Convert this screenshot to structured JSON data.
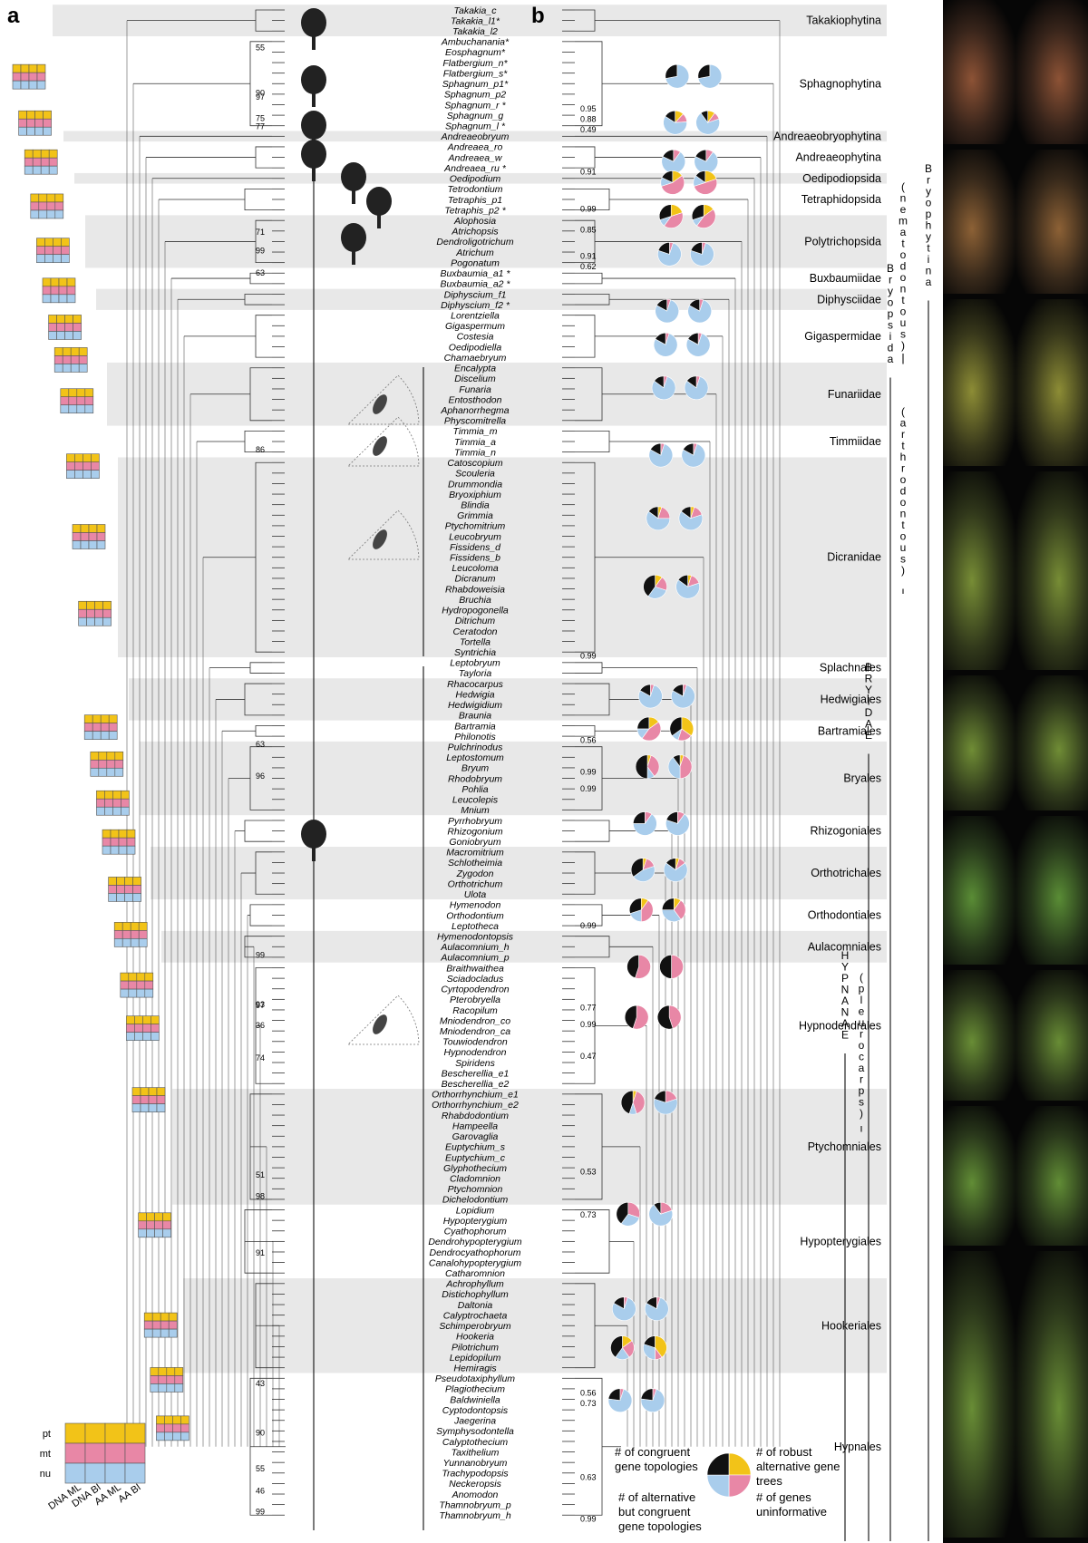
{
  "panel_labels": {
    "a": "a",
    "b": "b"
  },
  "colors": {
    "pt": "#f2c318",
    "mt": "#e887a6",
    "nu": "#a9cdec",
    "uninformative": "#111111",
    "band": "#e8e8e8"
  },
  "taxa": [
    "Takakia_c",
    "Takakia_l1*",
    "Takakia_l2",
    "Ambuchanania*",
    "Eosphagnum*",
    "Flatbergium_n*",
    "Flatbergium_s*",
    "Sphagnum_p1*",
    "Sphagnum_p2",
    "Sphagnum_r *",
    "Sphagnum_g",
    "Sphagnum_l *",
    "Andreaeobryum",
    "Andreaea_ro",
    "Andreaea_w",
    "Andreaea_ru *",
    "Oedipodium",
    "Tetrodontium",
    "Tetraphis_p1",
    "Tetraphis_p2 *",
    "Alophosia",
    "Atrichopsis",
    "Dendroligotrichum",
    "Atrichum",
    "Pogonatum",
    "Buxbaumia_a1 *",
    "Buxbaumia_a2 *",
    "Diphyscium_f1",
    "Diphyscium_f2 *",
    "Lorentziella",
    "Gigaspermum",
    "Costesia",
    "Oedipodiella",
    "Chamaebryum",
    "Encalypta",
    "Discelium",
    "Funaria",
    "Entosthodon",
    "Aphanorrhegma",
    "Physcomitrella",
    "Timmia_m",
    "Timmia_a",
    "Timmia_n",
    "Catoscopium",
    "Scouleria",
    "Drummondia",
    "Bryoxiphium",
    "Blindia",
    "Grimmia",
    "Ptychomitrium",
    "Leucobryum",
    "Fissidens_d",
    "Fissidens_b",
    "Leucoloma",
    "Dicranum",
    "Rhabdoweisia",
    "Bruchia",
    "Hydropogonella",
    "Ditrichum",
    "Ceratodon",
    "Tortella",
    "Syntrichia",
    "Leptobryum",
    "Tayloria",
    "Rhacocarpus",
    "Hedwigia",
    "Hedwigidium",
    "Braunia",
    "Bartramia",
    "Philonotis",
    "Pulchrinodus",
    "Leptostomum",
    "Bryum",
    "Rhodobryum",
    "Pohlia",
    "Leucolepis",
    "Mnium",
    "Pyrrhobryum",
    "Rhizogonium",
    "Goniobryum",
    "Macromitrium",
    "Schlotheimia",
    "Zygodon",
    "Orthotrichum",
    "Ulota",
    "Hymenodon",
    "Orthodontium",
    "Leptotheca",
    "Hymenodontopsis",
    "Aulacomnium_h",
    "Aulacomnium_p",
    "Braithwaithea",
    "Sciadocladus",
    "Cyrtopodendron",
    "Pterobryella",
    "Racopilum",
    "Mniodendron_co",
    "Mniodendron_ca",
    "Touwiodendron",
    "Hypnodendron",
    "Spiridens",
    "Bescherellia_e1",
    "Bescherellia_e2",
    "Orthorrhynchium_e1",
    "Orthorrhynchium_e2",
    "Rhabdodontium",
    "Hampeella",
    "Garovaglia",
    "Euptychium_s",
    "Euptychium_c",
    "Glyphothecium",
    "Cladomnion",
    "Ptychomnion",
    "Dichelodontium",
    "Lopidium",
    "Hypopterygium",
    "Cyathophorum",
    "Dendrohypopterygium",
    "Dendrocyathophorum",
    "Canalohypopterygium",
    "Catharomnion",
    "Achrophyllum",
    "Distichophyllum",
    "Daltonia",
    "Calyptrochaeta",
    "Schimperobryum",
    "Hookeria",
    "Pilotrichum",
    "Lepidopilum",
    "Hemiragis",
    "Pseudotaxiphyllum",
    "Plagiothecium",
    "Baldwiniella",
    "Cyptodontopsis",
    "Jaegerina",
    "Symphysodontella",
    "Calyptothecium",
    "Taxithelium",
    "Yunnanobryum",
    "Trachypodopsis",
    "Neckeropsis",
    "Anomodon",
    "Thamnobryum_p",
    "Thamnobryum_h"
  ],
  "clades": [
    {
      "label": "Takakiophytina",
      "from": 0,
      "to": 2,
      "band": true
    },
    {
      "label": "Sphagnophytina",
      "from": 3,
      "to": 11,
      "band": false
    },
    {
      "label": "Andreaeobryophytina",
      "from": 12,
      "to": 12,
      "band": true
    },
    {
      "label": "Andreaeophytina",
      "from": 13,
      "to": 15,
      "band": false
    },
    {
      "label": "Oedipodiopsida",
      "from": 16,
      "to": 16,
      "band": true
    },
    {
      "label": "Tetraphidopsida",
      "from": 17,
      "to": 19,
      "band": false
    },
    {
      "label": "Polytrichopsida",
      "from": 20,
      "to": 24,
      "band": true
    },
    {
      "label": "Buxbaumiidae",
      "from": 25,
      "to": 26,
      "band": false
    },
    {
      "label": "Diphysciidae",
      "from": 27,
      "to": 28,
      "band": true
    },
    {
      "label": "Gigaspermidae",
      "from": 29,
      "to": 33,
      "band": false
    },
    {
      "label": "Funariidae",
      "from": 34,
      "to": 39,
      "band": true
    },
    {
      "label": "Timmiidae",
      "from": 40,
      "to": 42,
      "band": false
    },
    {
      "label": "Dicranidae",
      "from": 43,
      "to": 61,
      "band": true
    },
    {
      "label": "Splachnales",
      "from": 62,
      "to": 63,
      "band": false
    },
    {
      "label": "Hedwigiales",
      "from": 64,
      "to": 67,
      "band": true
    },
    {
      "label": "Bartramiales",
      "from": 68,
      "to": 69,
      "band": false
    },
    {
      "label": "Bryales",
      "from": 70,
      "to": 76,
      "band": true
    },
    {
      "label": "Rhizogoniales",
      "from": 77,
      "to": 79,
      "band": false
    },
    {
      "label": "Orthotrichales",
      "from": 80,
      "to": 84,
      "band": true
    },
    {
      "label": "Orthodontiales",
      "from": 85,
      "to": 87,
      "band": false
    },
    {
      "label": "Aulacomniales",
      "from": 88,
      "to": 90,
      "band": true
    },
    {
      "label": "Hypnodendrales",
      "from": 91,
      "to": 102,
      "band": false
    },
    {
      "label": "Ptychomniales",
      "from": 103,
      "to": 113,
      "band": true
    },
    {
      "label": "Hypopterygiales",
      "from": 114,
      "to": 120,
      "band": false
    },
    {
      "label": "Hookeriales",
      "from": 121,
      "to": 129,
      "band": true
    },
    {
      "label": "Hypnales",
      "from": 130,
      "to": 143,
      "band": false
    }
  ],
  "vertical_labels": [
    {
      "text": "Bryophytina",
      "col": 3
    },
    {
      "text": "Bryopsida",
      "col": 2
    },
    {
      "text": "(nematodontous)",
      "col": 1
    },
    {
      "text": "(arthrodontous)",
      "col": 1
    },
    {
      "text": "BRYIDAE",
      "col": 0
    },
    {
      "text": "HYPNANAE",
      "col": -1
    },
    {
      "text": "(pleurocarps)",
      "col": 0
    }
  ],
  "support_values_a": [
    {
      "text": "55",
      "row": 3.5
    },
    {
      "text": "90",
      "row": 7.8
    },
    {
      "text": "97",
      "row": 8.2
    },
    {
      "text": "75",
      "row": 10.2
    },
    {
      "text": "77",
      "row": 11
    },
    {
      "text": "71",
      "row": 21
    },
    {
      "text": "99",
      "row": 22.8
    },
    {
      "text": "63",
      "row": 24.9
    },
    {
      "text": "86",
      "row": 41.7
    },
    {
      "text": "63",
      "row": 69.7
    },
    {
      "text": "96",
      "row": 72.7
    },
    {
      "text": "99",
      "row": 89.7
    },
    {
      "text": "97",
      "row": 94.5
    },
    {
      "text": "93",
      "row": 94.4
    },
    {
      "text": "36",
      "row": 96.4
    },
    {
      "text": "74",
      "row": 99.5
    },
    {
      "text": "51",
      "row": 110.6
    },
    {
      "text": "98",
      "row": 112.6
    },
    {
      "text": "91",
      "row": 118
    },
    {
      "text": "43",
      "row": 130.4
    },
    {
      "text": "90",
      "row": 135.1
    },
    {
      "text": "55",
      "row": 138.5
    },
    {
      "text": "46",
      "row": 140.6
    },
    {
      "text": "99",
      "row": 142.6
    }
  ],
  "support_values_b": [
    {
      "text": "0.95",
      "row": 9.3
    },
    {
      "text": "0.88",
      "row": 10.3
    },
    {
      "text": "0.49",
      "row": 11.3
    },
    {
      "text": "0.91",
      "row": 15.3
    },
    {
      "text": "0.99",
      "row": 18.8
    },
    {
      "text": "0.85",
      "row": 20.8
    },
    {
      "text": "0.91",
      "row": 23.3
    },
    {
      "text": "0.62",
      "row": 24.3
    },
    {
      "text": "0.99",
      "row": 61.3
    },
    {
      "text": "0.56",
      "row": 69.3
    },
    {
      "text": "0.99",
      "row": 72.3
    },
    {
      "text": "0.99",
      "row": 73.9
    },
    {
      "text": "0.99",
      "row": 86.9
    },
    {
      "text": "0.77",
      "row": 94.7
    },
    {
      "text": "0.99",
      "row": 96.3
    },
    {
      "text": "0.47",
      "row": 99.3
    },
    {
      "text": "0.53",
      "row": 110.3
    },
    {
      "text": "0.73",
      "row": 114.4
    },
    {
      "text": "0.56",
      "row": 131.3
    },
    {
      "text": "0.73",
      "row": 132.3
    },
    {
      "text": "0.63",
      "row": 139.3
    },
    {
      "text": "0.99",
      "row": 143.3
    }
  ],
  "pies": [
    {
      "row": 6.3,
      "slices": [
        0,
        0,
        0.72,
        0.28
      ]
    },
    {
      "row": 6.3,
      "slices": [
        0,
        0,
        0.72,
        0.28
      ],
      "second": true
    },
    {
      "row": 10.7,
      "slices": [
        0.12,
        0.12,
        0.6,
        0.16
      ]
    },
    {
      "row": 10.7,
      "slices": [
        0.1,
        0.1,
        0.7,
        0.1
      ],
      "second": true
    },
    {
      "row": 14.4,
      "slices": [
        0,
        0.1,
        0.72,
        0.18
      ]
    },
    {
      "row": 14.4,
      "slices": [
        0,
        0.1,
        0.72,
        0.18
      ],
      "second": true
    },
    {
      "row": 16.4,
      "slices": [
        0.15,
        0.55,
        0.12,
        0.18
      ]
    },
    {
      "row": 16.4,
      "slices": [
        0.2,
        0.5,
        0.15,
        0.15
      ],
      "second": true
    },
    {
      "row": 19.6,
      "slices": [
        0.2,
        0.4,
        0.1,
        0.3
      ]
    },
    {
      "row": 19.6,
      "slices": [
        0.15,
        0.45,
        0.1,
        0.3
      ],
      "second": true
    },
    {
      "row": 23.2,
      "slices": [
        0,
        0.05,
        0.75,
        0.2
      ]
    },
    {
      "row": 23.2,
      "slices": [
        0,
        0.05,
        0.75,
        0.2
      ],
      "second": true
    },
    {
      "row": 28.6,
      "slices": [
        0,
        0.05,
        0.78,
        0.17
      ]
    },
    {
      "row": 28.6,
      "slices": [
        0,
        0.05,
        0.78,
        0.17
      ],
      "second": true
    },
    {
      "row": 31.8,
      "slices": [
        0,
        0.05,
        0.78,
        0.17
      ]
    },
    {
      "row": 31.8,
      "slices": [
        0,
        0.05,
        0.78,
        0.17
      ],
      "second": true
    },
    {
      "row": 35.9,
      "slices": [
        0,
        0.05,
        0.8,
        0.15
      ]
    },
    {
      "row": 35.9,
      "slices": [
        0,
        0.05,
        0.8,
        0.15
      ],
      "second": true
    },
    {
      "row": 42.3,
      "slices": [
        0,
        0.05,
        0.78,
        0.17
      ]
    },
    {
      "row": 42.3,
      "slices": [
        0,
        0.05,
        0.78,
        0.17
      ],
      "second": true
    },
    {
      "row": 48.3,
      "slices": [
        0.05,
        0.2,
        0.6,
        0.15
      ]
    },
    {
      "row": 48.3,
      "slices": [
        0.05,
        0.15,
        0.65,
        0.15
      ],
      "second": true
    },
    {
      "row": 54.8,
      "slices": [
        0.1,
        0.2,
        0.3,
        0.4
      ]
    },
    {
      "row": 54.8,
      "slices": [
        0.05,
        0.15,
        0.65,
        0.15
      ],
      "second": true
    },
    {
      "row": 65.2,
      "slices": [
        0,
        0.05,
        0.78,
        0.17
      ]
    },
    {
      "row": 65.2,
      "slices": [
        0,
        0.05,
        0.78,
        0.17
      ],
      "second": true
    },
    {
      "row": 68.3,
      "slices": [
        0.15,
        0.45,
        0.15,
        0.25
      ]
    },
    {
      "row": 68.3,
      "slices": [
        0.35,
        0.2,
        0.1,
        0.35
      ],
      "second": true
    },
    {
      "row": 71.9,
      "slices": [
        0.05,
        0.35,
        0.1,
        0.5
      ]
    },
    {
      "row": 71.9,
      "slices": [
        0.05,
        0.45,
        0.4,
        0.1
      ],
      "second": true
    },
    {
      "row": 77.3,
      "slices": [
        0,
        0.1,
        0.65,
        0.25
      ]
    },
    {
      "row": 77.3,
      "slices": [
        0,
        0.1,
        0.7,
        0.2
      ],
      "second": true
    },
    {
      "row": 81.7,
      "slices": [
        0.05,
        0.15,
        0.45,
        0.35
      ]
    },
    {
      "row": 81.7,
      "slices": [
        0.05,
        0.1,
        0.7,
        0.15
      ],
      "second": true
    },
    {
      "row": 85.5,
      "slices": [
        0.1,
        0.4,
        0.2,
        0.3
      ]
    },
    {
      "row": 85.5,
      "slices": [
        0.1,
        0.3,
        0.35,
        0.25
      ],
      "second": true
    },
    {
      "row": 90.9,
      "slices": [
        0,
        0.55,
        0,
        0.45
      ]
    },
    {
      "row": 90.9,
      "slices": [
        0,
        0.5,
        0,
        0.5
      ],
      "second": true
    },
    {
      "row": 95.7,
      "slices": [
        0,
        0.55,
        0,
        0.45
      ]
    },
    {
      "row": 95.7,
      "slices": [
        0,
        0.45,
        0,
        0.55
      ],
      "second": true
    },
    {
      "row": 103.8,
      "slices": [
        0.05,
        0.4,
        0.1,
        0.45
      ]
    },
    {
      "row": 103.8,
      "slices": [
        0,
        0.2,
        0.6,
        0.2
      ],
      "second": true
    },
    {
      "row": 114.4,
      "slices": [
        0,
        0.3,
        0.3,
        0.4
      ]
    },
    {
      "row": 114.4,
      "slices": [
        0,
        0.2,
        0.7,
        0.1
      ],
      "second": true
    },
    {
      "row": 123.4,
      "slices": [
        0,
        0.05,
        0.78,
        0.17
      ]
    },
    {
      "row": 123.4,
      "slices": [
        0,
        0.05,
        0.78,
        0.17
      ],
      "second": true
    },
    {
      "row": 127.1,
      "slices": [
        0.15,
        0.25,
        0.2,
        0.4
      ]
    },
    {
      "row": 127.1,
      "slices": [
        0.4,
        0.1,
        0.3,
        0.2
      ],
      "second": true
    },
    {
      "row": 132.1,
      "slices": [
        0,
        0.05,
        0.72,
        0.23
      ]
    },
    {
      "row": 132.1,
      "slices": [
        0,
        0.05,
        0.72,
        0.23
      ],
      "second": true
    }
  ],
  "legend": {
    "rows": [
      "pt",
      "mt",
      "nu"
    ],
    "columns": [
      "DNA ML",
      "DNA BI",
      "AA ML",
      "AA BI"
    ],
    "pie_labels": {
      "congruent": "# of congruent gene topologies",
      "robust_alt": "# of robust alternative gene trees",
      "alt_congruent": "# of alternative but congruent gene topologies",
      "uninformative": "# of genes uninformative"
    }
  }
}
